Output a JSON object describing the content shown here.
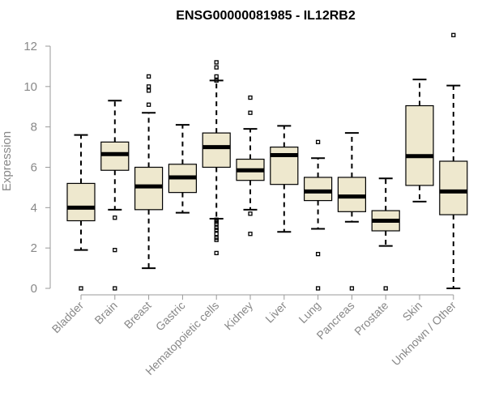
{
  "chart_data": {
    "type": "boxplot",
    "title": "ENSG00000081985 - IL12RB2",
    "ylabel": "Expression",
    "xlabel": "",
    "ylim": [
      0,
      12.5
    ],
    "yticks": [
      0,
      2,
      4,
      6,
      8,
      10,
      12
    ],
    "grid": false,
    "colors": {
      "box_fill": "#EEE8CE",
      "box_stroke": "#000000",
      "axis_text": "#888888"
    },
    "categories": [
      "Bladder",
      "Brain",
      "Breast",
      "Gastric",
      "Hematopoietic cells",
      "Kidney",
      "Liver",
      "Lung",
      "Pancreas",
      "Prostate",
      "Skin",
      "Unknown / Other"
    ],
    "boxes": [
      {
        "min": 1.9,
        "q1": 3.35,
        "median": 4.0,
        "q3": 5.2,
        "max": 7.6,
        "outliers": [
          0.0
        ]
      },
      {
        "min": 3.9,
        "q1": 5.85,
        "median": 6.65,
        "q3": 7.25,
        "max": 9.3,
        "outliers": [
          3.5,
          1.9,
          0.0
        ]
      },
      {
        "min": 1.0,
        "q1": 3.9,
        "median": 5.05,
        "q3": 6.0,
        "max": 8.7,
        "outliers": [
          10.5,
          10.0,
          9.8,
          9.1
        ]
      },
      {
        "min": 3.75,
        "q1": 4.75,
        "median": 5.5,
        "q3": 6.15,
        "max": 8.1,
        "outliers": []
      },
      {
        "min": 3.45,
        "q1": 6.0,
        "median": 7.0,
        "q3": 7.7,
        "max": 10.3,
        "outliers": [
          11.2,
          10.95,
          10.5,
          10.3,
          3.4,
          3.3,
          3.2,
          3.0,
          2.9,
          2.7,
          2.5,
          2.4,
          1.75
        ]
      },
      {
        "min": 3.9,
        "q1": 5.35,
        "median": 5.85,
        "q3": 6.4,
        "max": 7.9,
        "outliers": [
          9.45,
          8.7,
          3.7,
          2.7
        ]
      },
      {
        "min": 2.8,
        "q1": 5.15,
        "median": 6.6,
        "q3": 7.0,
        "max": 8.05,
        "outliers": []
      },
      {
        "min": 2.95,
        "q1": 4.35,
        "median": 4.8,
        "q3": 5.5,
        "max": 6.45,
        "outliers": [
          7.25,
          1.7,
          0.0
        ]
      },
      {
        "min": 3.3,
        "q1": 3.8,
        "median": 4.55,
        "q3": 5.5,
        "max": 7.7,
        "outliers": [
          0.0
        ]
      },
      {
        "min": 2.1,
        "q1": 2.85,
        "median": 3.35,
        "q3": 3.85,
        "max": 5.45,
        "outliers": [
          0.0
        ]
      },
      {
        "min": 4.3,
        "q1": 5.1,
        "median": 6.55,
        "q3": 9.05,
        "max": 10.35,
        "outliers": []
      },
      {
        "min": 0.0,
        "q1": 3.65,
        "median": 4.8,
        "q3": 6.3,
        "max": 10.05,
        "outliers": [
          12.55
        ]
      }
    ]
  }
}
